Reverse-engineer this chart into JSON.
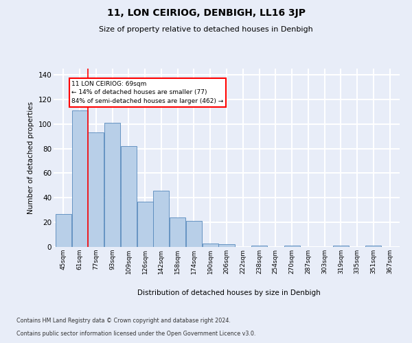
{
  "title": "11, LON CEIRIOG, DENBIGH, LL16 3JP",
  "subtitle": "Size of property relative to detached houses in Denbigh",
  "xlabel": "Distribution of detached houses by size in Denbigh",
  "ylabel": "Number of detached properties",
  "bar_labels": [
    "45sqm",
    "61sqm",
    "77sqm",
    "93sqm",
    "109sqm",
    "126sqm",
    "142sqm",
    "158sqm",
    "174sqm",
    "190sqm",
    "206sqm",
    "222sqm",
    "238sqm",
    "254sqm",
    "270sqm",
    "287sqm",
    "303sqm",
    "319sqm",
    "335sqm",
    "351sqm",
    "367sqm"
  ],
  "bar_values": [
    27,
    111,
    93,
    101,
    82,
    37,
    46,
    24,
    21,
    3,
    2,
    0,
    1,
    0,
    1,
    0,
    0,
    1,
    0,
    1,
    0
  ],
  "bar_color": "#b8cfe8",
  "bar_edgecolor": "#5588bb",
  "annotation_text": "11 LON CEIRIOG: 69sqm\n← 14% of detached houses are smaller (77)\n84% of semi-detached houses are larger (462) →",
  "red_line_x": 1.5,
  "ylim": [
    0,
    145
  ],
  "yticks": [
    0,
    20,
    40,
    60,
    80,
    100,
    120,
    140
  ],
  "bg_color": "#e8edf8",
  "grid_color": "#ffffff",
  "footer_line1": "Contains HM Land Registry data © Crown copyright and database right 2024.",
  "footer_line2": "Contains public sector information licensed under the Open Government Licence v3.0."
}
